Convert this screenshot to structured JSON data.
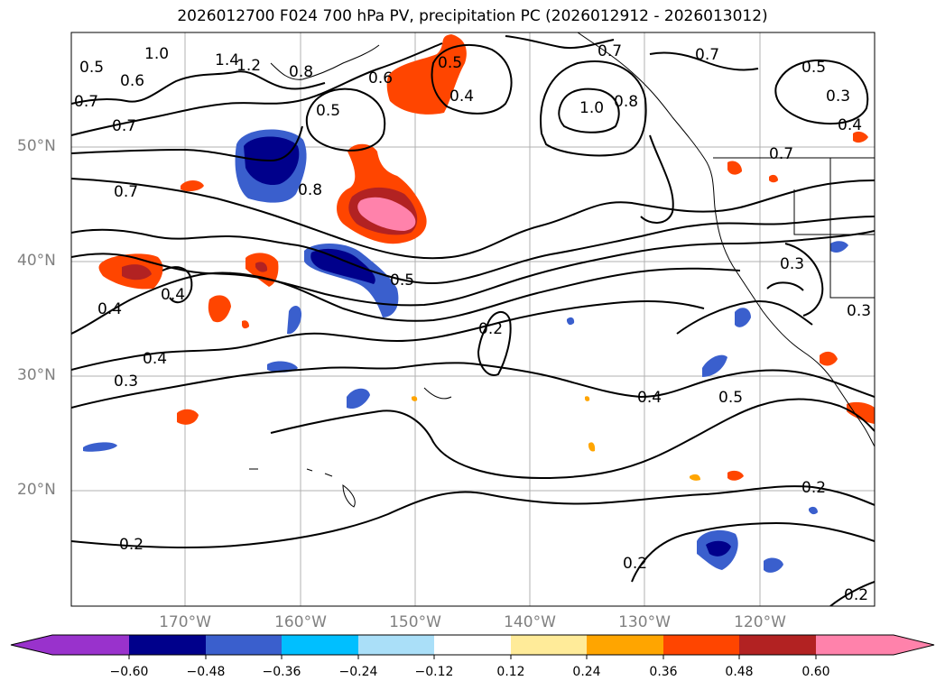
{
  "title": "2026012700 F024 700 hPa PV, precipitation PC (2026012912 - 2026013012)",
  "lat_labels": [
    "50°N",
    "40°N",
    "30°N",
    "20°N"
  ],
  "lon_labels": [
    "170°W",
    "160°W",
    "150°W",
    "140°W",
    "130°W",
    "120°W"
  ],
  "contour_labels": [
    "0.5",
    "0.6",
    "1.0",
    "1.4",
    "1.2",
    "0.8",
    "0.7",
    "0.7",
    "0.6",
    "0.5",
    "0.4",
    "0.5",
    "0.7",
    "1.0",
    "0.8",
    "0.7",
    "0.5",
    "0.3",
    "0.4",
    "0.7",
    "0.8",
    "0.7",
    "0.5",
    "0.3",
    "0.4",
    "0.4",
    "0.3",
    "0.4",
    "0.2",
    "0.3",
    "0.4",
    "0.5",
    "0.2",
    "0.2",
    "0.2",
    "0.2"
  ],
  "colorbar": {
    "ticks": [
      "−0.60",
      "−0.48",
      "−0.36",
      "−0.24",
      "−0.12",
      "0.12",
      "0.24",
      "0.36",
      "0.48",
      "0.60"
    ],
    "colors": [
      "#9932cc",
      "#00008b",
      "#3a5fcd",
      "#00bfff",
      "#aadff8",
      "#ffffff",
      "#ffeb99",
      "#ffa500",
      "#ff4500",
      "#b22222",
      "#ff82ab"
    ]
  }
}
